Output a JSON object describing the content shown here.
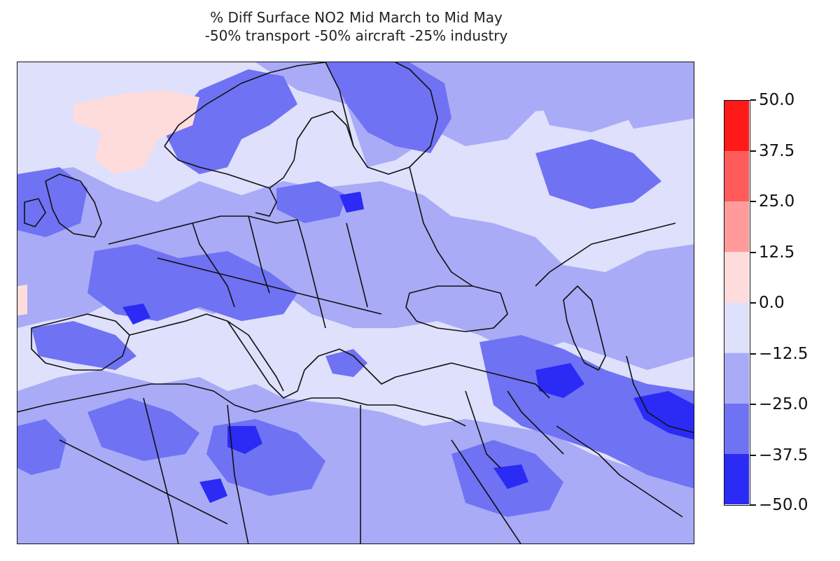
{
  "title": {
    "line1": "% Diff Surface NO2 Mid March to Mid May",
    "line2": "-50% transport -50% aircraft -25% industry"
  },
  "colorbar": {
    "ticks": [
      "50.0",
      "37.5",
      "25.0",
      "12.5",
      "0.0",
      "−12.5",
      "−25.0",
      "−37.5",
      "−50.0"
    ],
    "levels": [
      50.0,
      37.5,
      25.0,
      12.5,
      0.0,
      -12.5,
      -25.0,
      -37.5,
      -50.0
    ],
    "bands_top_to_bottom": [
      "#ff1a1a",
      "#ff5b5b",
      "#ff9b9b",
      "#ffdcdc",
      "#dfe0fb",
      "#a9abf7",
      "#6f72f3",
      "#2b2bf5"
    ]
  },
  "map": {
    "region": "Europe, North Africa, Middle East",
    "palette": {
      "ocean_land_base": "#dfe0fb",
      "mild_decrease": "#a9abf7",
      "moderate_decrease": "#6f72f3",
      "strong_decrease": "#2b2bf5",
      "slight_increase": "#ffdcdc",
      "border_color": "#111111"
    }
  }
}
